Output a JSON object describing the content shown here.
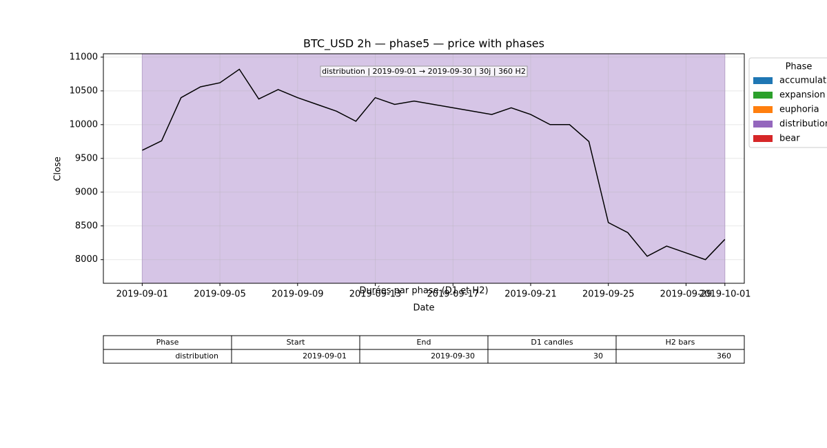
{
  "chart_data": {
    "type": "line",
    "title": "BTC_USD 2h — phase5 — price with phases",
    "xlabel": "Date",
    "ylabel": "Close",
    "annotation": "distribution | 2019-09-01 → 2019-09-30 | 30j | 360 H2",
    "x": [
      "2019-09-01",
      "2019-09-02",
      "2019-09-03",
      "2019-09-04",
      "2019-09-05",
      "2019-09-06",
      "2019-09-07",
      "2019-09-08",
      "2019-09-09",
      "2019-09-10",
      "2019-09-11",
      "2019-09-12",
      "2019-09-13",
      "2019-09-14",
      "2019-09-15",
      "2019-09-16",
      "2019-09-17",
      "2019-09-18",
      "2019-09-19",
      "2019-09-20",
      "2019-09-21",
      "2019-09-22",
      "2019-09-23",
      "2019-09-24",
      "2019-09-25",
      "2019-09-26",
      "2019-09-27",
      "2019-09-28",
      "2019-09-29",
      "2019-09-30",
      "2019-10-01"
    ],
    "series": [
      {
        "name": "Close",
        "color": "#000000",
        "values": [
          9620,
          9760,
          10400,
          10560,
          10620,
          10820,
          10380,
          10520,
          10400,
          10300,
          10200,
          10050,
          10400,
          10300,
          10350,
          10300,
          10250,
          10200,
          10150,
          10250,
          10150,
          10000,
          10000,
          9750,
          8550,
          8400,
          8050,
          8200,
          8100,
          8000,
          8300
        ]
      }
    ],
    "phase_span": {
      "start": "2019-09-01",
      "end": "2019-10-01",
      "color": "#9467bd"
    },
    "legend": {
      "title": "Phase",
      "position": "outside upper right",
      "entries": [
        {
          "name": "accumulation",
          "color": "#1f77b4"
        },
        {
          "name": "expansion",
          "color": "#2ca02c"
        },
        {
          "name": "euphoria",
          "color": "#ff7f0e"
        },
        {
          "name": "distribution",
          "color": "#9467bd"
        },
        {
          "name": "bear",
          "color": "#d62728"
        }
      ]
    },
    "xlim": [
      "2019-08-30",
      "2019-10-02"
    ],
    "xticks": [
      "2019-09-01",
      "2019-09-05",
      "2019-09-09",
      "2019-09-13",
      "2019-09-17",
      "2019-09-21",
      "2019-09-25",
      "2019-09-29",
      "2019-10-01"
    ],
    "ylim": [
      7650,
      11050
    ],
    "yticks": [
      8000,
      8500,
      9000,
      9500,
      10000,
      10500,
      11000
    ],
    "grid": true
  },
  "table": {
    "title": "Durées par phase (D1 et H2)",
    "columns": [
      "Phase",
      "Start",
      "End",
      "D1 candles",
      "H2 bars"
    ],
    "rows": [
      [
        "distribution",
        "2019-09-01",
        "2019-09-30",
        30,
        360
      ]
    ]
  }
}
